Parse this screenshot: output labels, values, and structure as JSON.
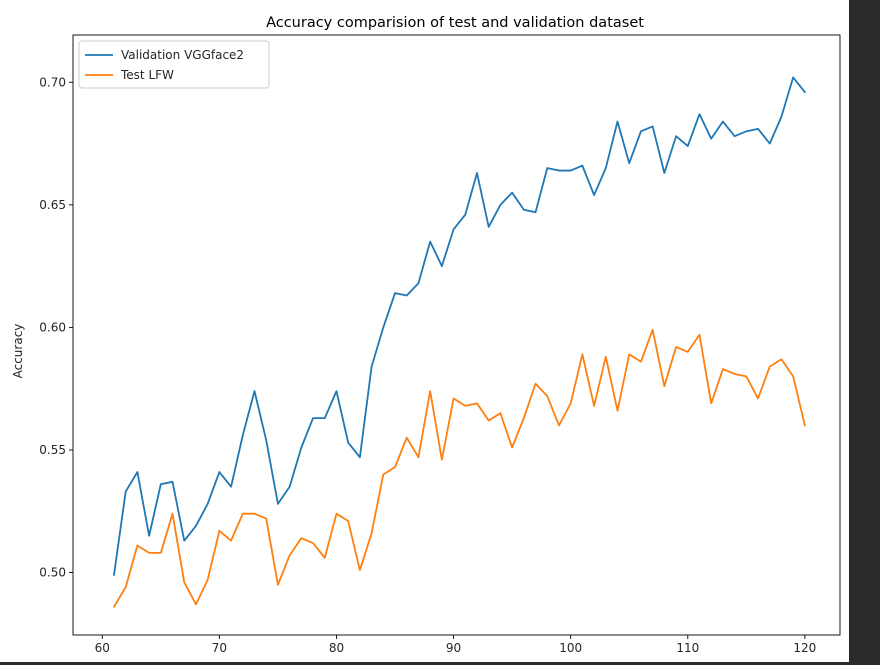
{
  "chart_data": {
    "type": "line",
    "title": "Accuracy comparision of test and validation dataset",
    "xlabel": "",
    "ylabel": "Accuracy",
    "xlim": [
      57.5,
      123
    ],
    "ylim": [
      0.4745,
      0.7193
    ],
    "xticks": [
      60,
      70,
      80,
      90,
      100,
      110,
      120
    ],
    "yticks": [
      0.5,
      0.55,
      0.6,
      0.65,
      0.7
    ],
    "ytick_labels": [
      "0.50",
      "0.55",
      "0.60",
      "0.65",
      "0.70"
    ],
    "grid": false,
    "legend_position": "top-left",
    "x": [
      61,
      62,
      63,
      64,
      65,
      66,
      67,
      68,
      69,
      70,
      71,
      72,
      73,
      74,
      75,
      76,
      77,
      78,
      79,
      80,
      81,
      82,
      83,
      84,
      85,
      86,
      87,
      88,
      89,
      90,
      91,
      92,
      93,
      94,
      95,
      96,
      97,
      98,
      99,
      100,
      101,
      102,
      103,
      104,
      105,
      106,
      107,
      108,
      109,
      110,
      111,
      112,
      113,
      114,
      115,
      116,
      117,
      118,
      119,
      120
    ],
    "series": [
      {
        "name": "Validation VGGface2",
        "color": "#1f77b4",
        "values": [
          0.499,
          0.533,
          0.541,
          0.515,
          0.536,
          0.537,
          0.513,
          0.519,
          0.528,
          0.541,
          0.535,
          0.556,
          0.574,
          0.554,
          0.528,
          0.535,
          0.551,
          0.563,
          0.563,
          0.574,
          0.553,
          0.547,
          0.584,
          0.6,
          0.614,
          0.613,
          0.618,
          0.635,
          0.625,
          0.64,
          0.646,
          0.663,
          0.641,
          0.65,
          0.655,
          0.648,
          0.647,
          0.665,
          0.664,
          0.664,
          0.666,
          0.654,
          0.665,
          0.684,
          0.667,
          0.68,
          0.682,
          0.663,
          0.678,
          0.674,
          0.687,
          0.677,
          0.684,
          0.678,
          0.68,
          0.681,
          0.675,
          0.686,
          0.702,
          0.696
        ]
      },
      {
        "name": "Test LFW",
        "color": "#ff7f0e",
        "values": [
          0.486,
          0.494,
          0.511,
          0.508,
          0.508,
          0.524,
          0.496,
          0.487,
          0.497,
          0.517,
          0.513,
          0.524,
          0.524,
          0.522,
          0.495,
          0.507,
          0.514,
          0.512,
          0.506,
          0.524,
          0.521,
          0.501,
          0.516,
          0.54,
          0.543,
          0.555,
          0.547,
          0.574,
          0.546,
          0.571,
          0.568,
          0.569,
          0.562,
          0.565,
          0.551,
          0.563,
          0.577,
          0.572,
          0.56,
          0.569,
          0.589,
          0.568,
          0.588,
          0.566,
          0.589,
          0.586,
          0.599,
          0.576,
          0.592,
          0.59,
          0.597,
          0.569,
          0.583,
          0.581,
          0.58,
          0.571,
          0.584,
          0.587,
          0.58,
          0.56
        ]
      }
    ]
  }
}
